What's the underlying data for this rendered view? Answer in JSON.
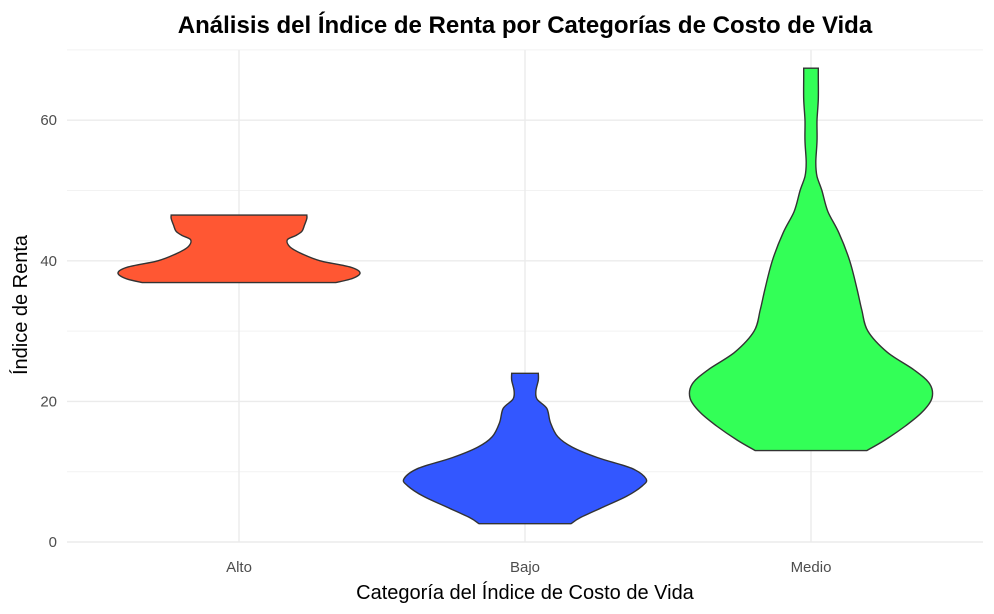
{
  "chart_data": {
    "type": "violin",
    "title": "Análisis del Índice de Renta por Categorías de Costo de Vida",
    "xlabel": "Categoría del Índice de Costo de Vida",
    "ylabel": "Índice de Renta",
    "ylim": [
      0,
      70
    ],
    "y_ticks": [
      0,
      20,
      40,
      60
    ],
    "y_minor_ticks": [
      10,
      30,
      50,
      70
    ],
    "grid": true,
    "legend": "none",
    "categories": [
      "Alto",
      "Bajo",
      "Medio"
    ],
    "series": [
      {
        "category": "Alto",
        "color": "#FF5733",
        "min": 36.9,
        "max": 46.5,
        "density_profile": [
          [
            36.9,
            0.8
          ],
          [
            37.5,
            0.94
          ],
          [
            38.3,
            1.0
          ],
          [
            39.1,
            0.92
          ],
          [
            40.0,
            0.67
          ],
          [
            41.0,
            0.52
          ],
          [
            42.0,
            0.42
          ],
          [
            43.0,
            0.4
          ],
          [
            43.6,
            0.47
          ],
          [
            44.2,
            0.52
          ],
          [
            45.0,
            0.54
          ],
          [
            46.0,
            0.56
          ],
          [
            46.5,
            0.56
          ]
        ]
      },
      {
        "category": "Bajo",
        "color": "#3357FF",
        "min": 2.6,
        "max": 24.0,
        "density_profile": [
          [
            2.6,
            0.38
          ],
          [
            3.5,
            0.46
          ],
          [
            5.0,
            0.65
          ],
          [
            6.5,
            0.84
          ],
          [
            8.0,
            0.97
          ],
          [
            9.0,
            1.0
          ],
          [
            10.5,
            0.88
          ],
          [
            12.0,
            0.6
          ],
          [
            13.5,
            0.39
          ],
          [
            15.0,
            0.27
          ],
          [
            17.0,
            0.21
          ],
          [
            19.0,
            0.18
          ],
          [
            20.3,
            0.1
          ],
          [
            21.5,
            0.09
          ],
          [
            23.0,
            0.11
          ],
          [
            24.0,
            0.11
          ]
        ]
      },
      {
        "category": "Medio",
        "color": "#33FF57",
        "min": 13.0,
        "max": 67.4,
        "density_profile": [
          [
            13.0,
            0.46
          ],
          [
            14.5,
            0.61
          ],
          [
            16.5,
            0.78
          ],
          [
            18.5,
            0.92
          ],
          [
            20.5,
            1.0
          ],
          [
            22.5,
            0.98
          ],
          [
            24.5,
            0.85
          ],
          [
            27.0,
            0.63
          ],
          [
            30.0,
            0.47
          ],
          [
            33.0,
            0.42
          ],
          [
            36.0,
            0.38
          ],
          [
            40.0,
            0.32
          ],
          [
            44.0,
            0.23
          ],
          [
            47.0,
            0.14
          ],
          [
            50.0,
            0.09
          ],
          [
            52.0,
            0.05
          ],
          [
            54.0,
            0.04
          ],
          [
            57.0,
            0.05
          ],
          [
            60.0,
            0.05
          ],
          [
            63.0,
            0.06
          ],
          [
            66.0,
            0.06
          ],
          [
            67.4,
            0.06
          ]
        ]
      }
    ]
  }
}
